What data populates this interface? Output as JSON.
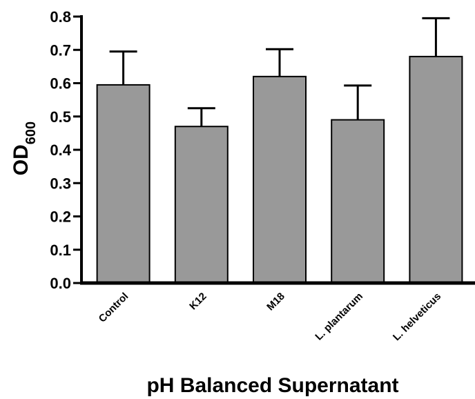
{
  "chart_data": {
    "type": "bar",
    "categories": [
      "Control",
      "K12",
      "M18",
      "L. plantarum",
      "L. helveticus"
    ],
    "values": [
      0.595,
      0.47,
      0.62,
      0.49,
      0.68
    ],
    "error_upper": [
      0.1,
      0.055,
      0.082,
      0.103,
      0.115
    ],
    "ylabel": "OD",
    "ylabel_subscript": "600",
    "xlabel": "pH Balanced Supernatant",
    "ylim": [
      0,
      0.8
    ],
    "yticks": [
      "0.0",
      "0.1",
      "0.2",
      "0.3",
      "0.4",
      "0.5",
      "0.6",
      "0.7",
      "0.8"
    ],
    "bar_color": "#999999",
    "grid": false
  }
}
